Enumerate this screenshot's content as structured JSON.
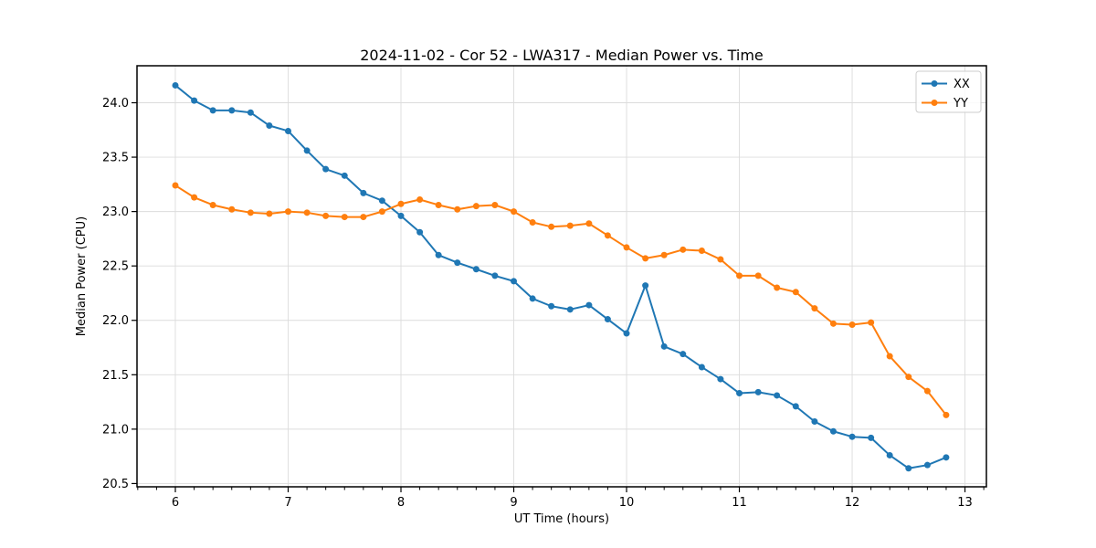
{
  "chart_data": {
    "type": "line",
    "title": "2024-11-02 - Cor 52 - LWA317 - Median Power vs. Time",
    "xlabel": "UT Time (hours)",
    "ylabel": "Median Power (CPU)",
    "xlim": [
      5.66,
      13.19
    ],
    "ylim": [
      20.47,
      24.34
    ],
    "xticks": [
      6,
      7,
      8,
      9,
      10,
      11,
      12,
      13
    ],
    "yticks": [
      20.5,
      21.0,
      21.5,
      22.0,
      22.5,
      23.0,
      23.5,
      24.0
    ],
    "x_minor_step": 0.1666667,
    "grid": true,
    "legend_position": "upper right",
    "x": [
      6.0,
      6.167,
      6.333,
      6.5,
      6.667,
      6.833,
      7.0,
      7.167,
      7.333,
      7.5,
      7.667,
      7.833,
      8.0,
      8.167,
      8.333,
      8.5,
      8.667,
      8.833,
      9.0,
      9.167,
      9.333,
      9.5,
      9.667,
      9.833,
      10.0,
      10.167,
      10.333,
      10.5,
      10.667,
      10.833,
      11.0,
      11.167,
      11.333,
      11.5,
      11.667,
      11.833,
      12.0,
      12.167,
      12.333,
      12.5,
      12.667,
      12.833
    ],
    "series": [
      {
        "name": "XX",
        "color": "#1f77b4",
        "values": [
          24.16,
          24.02,
          23.93,
          23.93,
          23.91,
          23.79,
          23.74,
          23.56,
          23.39,
          23.33,
          23.17,
          23.1,
          22.96,
          22.81,
          22.6,
          22.53,
          22.47,
          22.41,
          22.36,
          22.2,
          22.13,
          22.1,
          22.14,
          22.01,
          21.88,
          22.32,
          21.76,
          21.69,
          21.57,
          21.46,
          21.33,
          21.34,
          21.31,
          21.21,
          21.07,
          20.98,
          20.93,
          20.92,
          20.76,
          20.64,
          20.67,
          20.74
        ]
      },
      {
        "name": "YY",
        "color": "#ff7f0e",
        "values": [
          23.24,
          23.13,
          23.06,
          23.02,
          22.99,
          22.98,
          23.0,
          22.99,
          22.96,
          22.95,
          22.95,
          23.0,
          23.07,
          23.11,
          23.06,
          23.02,
          23.05,
          23.06,
          23.0,
          22.9,
          22.86,
          22.87,
          22.89,
          22.78,
          22.67,
          22.57,
          22.6,
          22.65,
          22.64,
          22.56,
          22.41,
          22.41,
          22.3,
          22.26,
          22.11,
          21.97,
          21.96,
          21.98,
          21.67,
          21.48,
          21.35,
          21.13
        ]
      }
    ],
    "style": {
      "grid_color": "#dcdcdc",
      "spine_color": "#000000",
      "background": "#ffffff",
      "legend_edge_color": "#cccccc",
      "tick_color": "#000000"
    }
  }
}
